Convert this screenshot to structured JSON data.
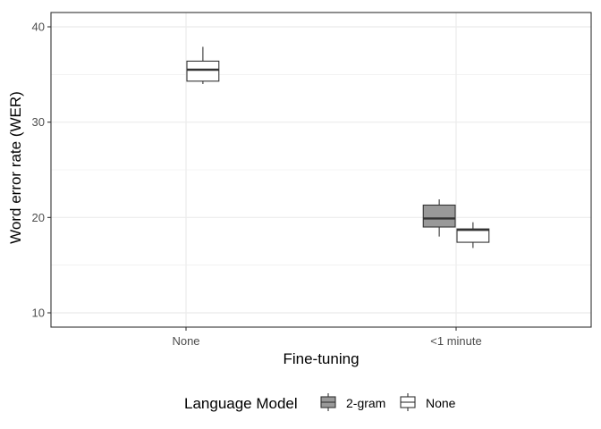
{
  "chart_data": {
    "type": "box",
    "xlabel": "Fine-tuning",
    "ylabel": "Word error rate (WER)",
    "categories": [
      "None",
      "<1 minute"
    ],
    "ylim": [
      8.5,
      41.5
    ],
    "yticks": [
      10,
      20,
      30,
      40
    ],
    "grid": true,
    "legend": {
      "title": "Language Model",
      "position": "bottom",
      "entries": [
        "2-gram",
        "None"
      ]
    },
    "series": [
      {
        "name": "2-gram",
        "color": "#999999",
        "boxes": [
          null,
          {
            "min": 18.0,
            "q1": 19.0,
            "median": 19.9,
            "q3": 21.3,
            "max": 21.9
          }
        ]
      },
      {
        "name": "None",
        "color": "#ffffff",
        "boxes": [
          {
            "min": 34.0,
            "q1": 34.3,
            "median": 35.5,
            "q3": 36.4,
            "max": 37.9
          },
          {
            "min": 16.8,
            "q1": 17.4,
            "median": 18.7,
            "q3": 18.8,
            "max": 19.5
          }
        ]
      }
    ]
  }
}
